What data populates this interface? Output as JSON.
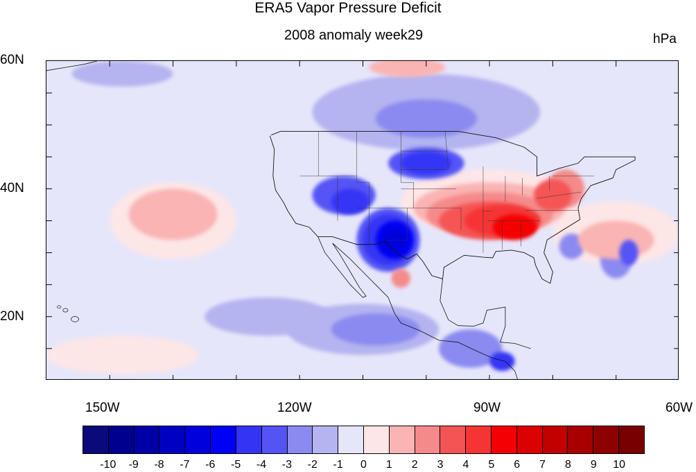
{
  "title": "ERA5 Vapor Pressure Deficit",
  "subtitle": "2008 anomaly week29",
  "units": "hPa",
  "lat_labels": [
    "60N",
    "40N",
    "20N"
  ],
  "lon_labels": [
    "150W",
    "120W",
    "90W",
    "60W"
  ],
  "colorbar": {
    "labels": [
      "-10",
      "-9",
      "-8",
      "-7",
      "-6",
      "-5",
      "-4",
      "-3",
      "-2",
      "-1",
      "0",
      "1",
      "2",
      "3",
      "4",
      "5",
      "6",
      "7",
      "8",
      "9",
      "10"
    ],
    "colors": [
      "#0a0a7a",
      "#00008e",
      "#0000a8",
      "#0000c2",
      "#0000dc",
      "#0000f5",
      "#3434f5",
      "#5454f5",
      "#8a8af0",
      "#b4b4f0",
      "#e6e6fa",
      "#fde6e6",
      "#fab4b4",
      "#f58a8a",
      "#f55454",
      "#f53434",
      "#f50000",
      "#dc0000",
      "#c20000",
      "#a80000",
      "#8e0000",
      "#780000"
    ]
  },
  "map": {
    "lon_range": [
      -160,
      -60
    ],
    "lat_range": [
      10,
      60
    ],
    "anomaly_regions": [
      {
        "level": -1,
        "lon": -125,
        "lat": 20,
        "rx": 10,
        "ry": 3
      },
      {
        "level": -1,
        "lon": -110,
        "lat": 18,
        "rx": 12,
        "ry": 4
      },
      {
        "level": -1,
        "lon": -100,
        "lat": 52,
        "rx": 18,
        "ry": 6
      },
      {
        "level": -1,
        "lon": -148,
        "lat": 58,
        "rx": 8,
        "ry": 2
      },
      {
        "level": -2,
        "lon": -108,
        "lat": 18,
        "rx": 7,
        "ry": 2.5
      },
      {
        "level": -2,
        "lon": -93,
        "lat": 15,
        "rx": 5,
        "ry": 3
      },
      {
        "level": -2,
        "lon": -100,
        "lat": 51,
        "rx": 8,
        "ry": 3
      },
      {
        "level": -2,
        "lon": -70,
        "lat": 29,
        "rx": 2.5,
        "ry": 3
      },
      {
        "level": -2,
        "lon": -77,
        "lat": 31,
        "rx": 2,
        "ry": 2
      },
      {
        "level": -3,
        "lon": -113,
        "lat": 39,
        "rx": 5,
        "ry": 3
      },
      {
        "level": -3,
        "lon": -106,
        "lat": 32,
        "rx": 5,
        "ry": 5
      },
      {
        "level": -3,
        "lon": -100,
        "lat": 44,
        "rx": 6,
        "ry": 2.5
      },
      {
        "level": -3,
        "lon": -68,
        "lat": 30,
        "rx": 1.5,
        "ry": 2
      },
      {
        "level": -4,
        "lon": -106,
        "lat": 32,
        "rx": 4,
        "ry": 4
      },
      {
        "level": -4,
        "lon": -112,
        "lat": 38,
        "rx": 3,
        "ry": 2
      },
      {
        "level": -4,
        "lon": -100,
        "lat": 44,
        "rx": 4,
        "ry": 1.8
      },
      {
        "level": -4,
        "lon": -88,
        "lat": 13,
        "rx": 2,
        "ry": 1.5
      },
      {
        "level": -5,
        "lon": -105,
        "lat": 32,
        "rx": 3,
        "ry": 3
      },
      {
        "level": -6,
        "lon": -105,
        "lat": 32,
        "rx": 2,
        "ry": 2
      },
      {
        "level": 1,
        "lon": -140,
        "lat": 35,
        "rx": 10,
        "ry": 6
      },
      {
        "level": 1,
        "lon": -148,
        "lat": 14,
        "rx": 12,
        "ry": 3
      },
      {
        "level": 1,
        "lon": -70,
        "lat": 33,
        "rx": 10,
        "ry": 5
      },
      {
        "level": 1,
        "lon": -90,
        "lat": 38,
        "rx": 14,
        "ry": 5
      },
      {
        "level": 2,
        "lon": -140,
        "lat": 36,
        "rx": 7,
        "ry": 4
      },
      {
        "level": 2,
        "lon": -90,
        "lat": 37,
        "rx": 12,
        "ry": 4
      },
      {
        "level": 2,
        "lon": -70,
        "lat": 32,
        "rx": 6,
        "ry": 3
      },
      {
        "level": 2,
        "lon": -103,
        "lat": 59,
        "rx": 6,
        "ry": 1.5
      },
      {
        "level": 3,
        "lon": -90,
        "lat": 36,
        "rx": 10,
        "ry": 3.5
      },
      {
        "level": 3,
        "lon": -78,
        "lat": 40,
        "rx": 3,
        "ry": 3
      },
      {
        "level": 3,
        "lon": -104,
        "lat": 26,
        "rx": 1.5,
        "ry": 1.5
      },
      {
        "level": 4,
        "lon": -90,
        "lat": 35,
        "rx": 8,
        "ry": 3
      },
      {
        "level": 4,
        "lon": -80,
        "lat": 39,
        "rx": 3,
        "ry": 2.5
      },
      {
        "level": 5,
        "lon": -88,
        "lat": 35,
        "rx": 6,
        "ry": 2.5
      },
      {
        "level": 6,
        "lon": -86,
        "lat": 34,
        "rx": 3.5,
        "ry": 2
      }
    ]
  }
}
